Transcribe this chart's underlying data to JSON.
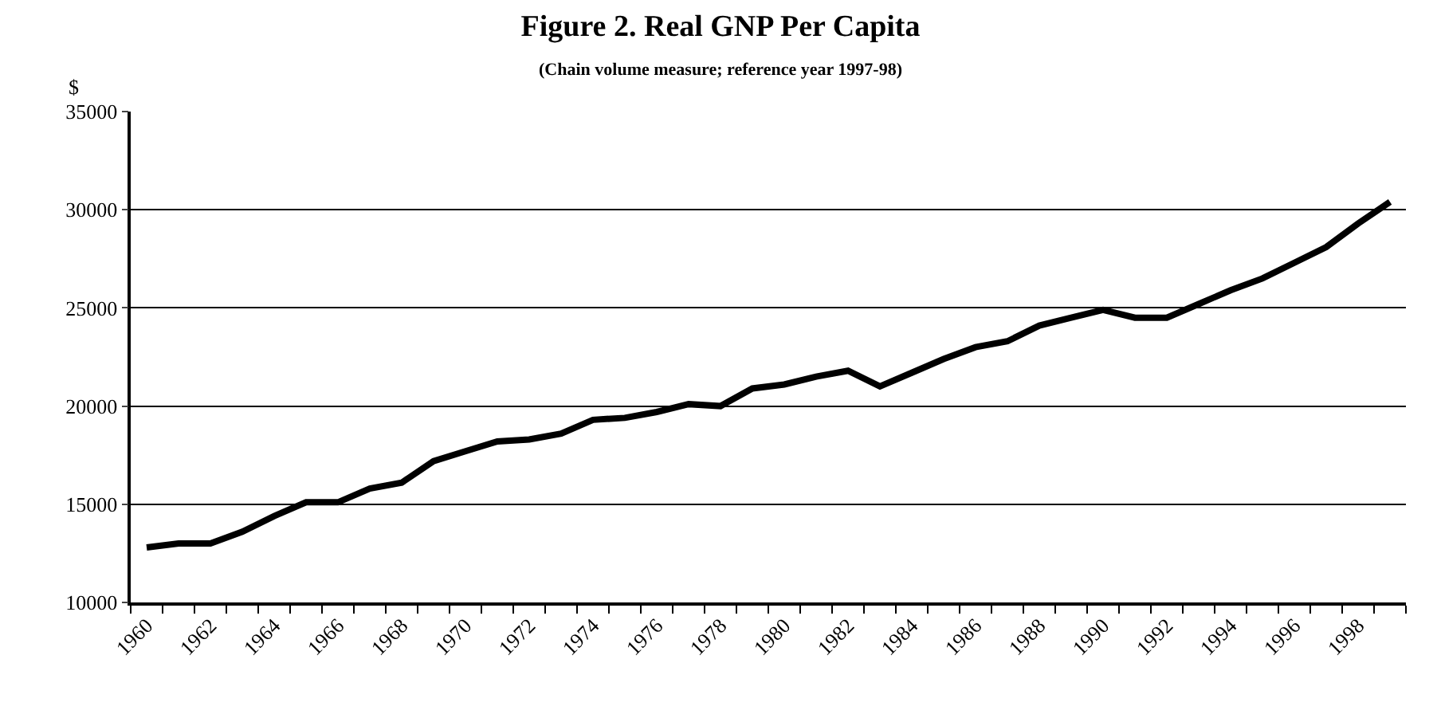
{
  "chart_data": {
    "type": "line",
    "title": "Figure 2. Real GNP Per Capita",
    "subtitle": "(Chain volume measure; reference year 1997-98)",
    "ylabel": "$",
    "categories": [
      "1960",
      null,
      "1962",
      null,
      "1964",
      null,
      "1966",
      null,
      "1968",
      null,
      "1970",
      null,
      "1972",
      null,
      "1974",
      null,
      "1976",
      null,
      "1978",
      null,
      "1980",
      null,
      "1982",
      null,
      "1984",
      null,
      "1986",
      null,
      "1988",
      null,
      "1990",
      null,
      "1992",
      null,
      "1994",
      null,
      "1996",
      null,
      "1998",
      null
    ],
    "series": [
      {
        "color": "#000000",
        "values": [
          12800,
          13000,
          13000,
          13600,
          14400,
          15100,
          15100,
          15800,
          16100,
          17200,
          17700,
          18200,
          18300,
          18600,
          19300,
          19400,
          19700,
          20100,
          20000,
          20900,
          21100,
          21500,
          21800,
          21000,
          21700,
          22400,
          23000,
          23300,
          24100,
          24500,
          24900,
          24500,
          24500,
          25200,
          25900,
          26500,
          27300,
          28100,
          29300,
          30400
        ]
      }
    ],
    "ylim": [
      10000,
      35000
    ],
    "yticks": [
      10000,
      15000,
      20000,
      25000,
      30000,
      35000
    ],
    "grid": "y",
    "marker": "none",
    "line_style": "solid"
  }
}
